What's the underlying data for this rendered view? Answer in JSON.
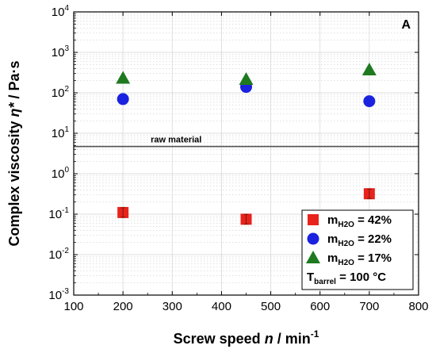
{
  "chart_data": {
    "type": "scatter",
    "xlabel": {
      "prefix": "Screw speed ",
      "italic": "n",
      "suffix": " / min",
      "superscript": "-1"
    },
    "ylabel": {
      "prefix": "Complex viscosity ",
      "italic": "η*",
      "suffix": " / Pa·s"
    },
    "xlim": [
      100,
      800
    ],
    "ylim": [
      0.001,
      10000
    ],
    "yscale": "log",
    "x_ticks": [
      100,
      200,
      300,
      400,
      500,
      600,
      700,
      800
    ],
    "y_ticks": [
      {
        "value": 0.001,
        "base": "10",
        "exp": "-3"
      },
      {
        "value": 0.01,
        "base": "10",
        "exp": "-2"
      },
      {
        "value": 0.1,
        "base": "10",
        "exp": "-1"
      },
      {
        "value": 1,
        "base": "10",
        "exp": "0"
      },
      {
        "value": 10,
        "base": "10",
        "exp": "1"
      },
      {
        "value": 100,
        "base": "10",
        "exp": "2"
      },
      {
        "value": 1000,
        "base": "10",
        "exp": "3"
      },
      {
        "value": 10000,
        "base": "10",
        "exp": "4"
      }
    ],
    "grid": true,
    "panel_label": "A",
    "reference_line": {
      "value": 4.7,
      "label": "raw material"
    },
    "series": [
      {
        "name": "m_H2O = 42%",
        "label_main": "m",
        "label_sub": "H2O",
        "label_rest": " = 42%",
        "marker": "square",
        "color": "#e8231c",
        "points": [
          {
            "x": 200,
            "y": 0.11
          },
          {
            "x": 450,
            "y": 0.075
          },
          {
            "x": 700,
            "y": 0.32
          }
        ]
      },
      {
        "name": "m_H2O = 22%",
        "label_main": "m",
        "label_sub": "H2O",
        "label_rest": " = 22%",
        "marker": "circle",
        "color": "#1a22e0",
        "points": [
          {
            "x": 200,
            "y": 70
          },
          {
            "x": 450,
            "y": 140
          },
          {
            "x": 700,
            "y": 62
          }
        ]
      },
      {
        "name": "m_H2O = 17%",
        "label_main": "m",
        "label_sub": "H2O",
        "label_rest": " = 17%",
        "marker": "triangle",
        "color": "#1f7a1f",
        "points": [
          {
            "x": 200,
            "y": 230
          },
          {
            "x": 450,
            "y": 215
          },
          {
            "x": 700,
            "y": 370
          }
        ]
      }
    ],
    "legend": {
      "position": "bottom-right",
      "extra": {
        "main": "T",
        "sub": "barrel",
        "rest": " = 100 °C"
      }
    }
  }
}
